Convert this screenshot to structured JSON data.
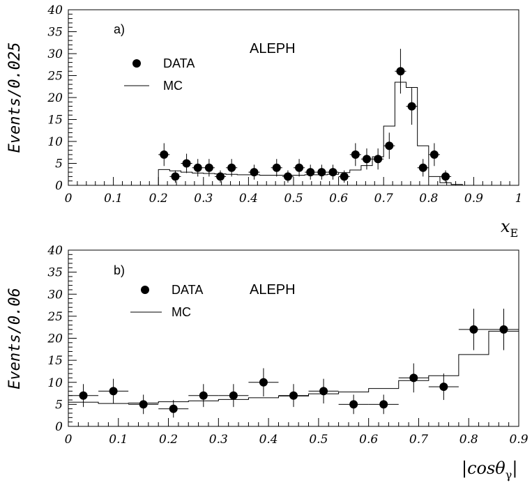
{
  "chart_data": [
    {
      "type": "scatter",
      "panel_label": "a)",
      "experiment_label": "ALEPH",
      "ylabel": "Events/0.025",
      "xlabel": "x",
      "xlabel_sub": "E",
      "xlim": [
        0,
        1
      ],
      "ylim": [
        0,
        40
      ],
      "x_ticks": [
        0,
        0.1,
        0.2,
        0.3,
        0.4,
        0.5,
        0.6,
        0.7,
        0.8,
        0.9,
        1
      ],
      "x_tick_labels": [
        "0",
        "0.1",
        "0.2",
        "0.3",
        "0.4",
        "0.5",
        "0.6",
        "0.7",
        "0.8",
        "0.9",
        "1"
      ],
      "y_ticks": [
        0,
        5,
        10,
        15,
        20,
        25,
        30,
        35,
        40
      ],
      "y_tick_labels": [
        "0",
        "5",
        "10",
        "15",
        "20",
        "25",
        "30",
        "35",
        "40"
      ],
      "legend": [
        "DATA",
        "MC"
      ],
      "series": [
        {
          "name": "DATA",
          "kind": "points",
          "x": [
            0.2125,
            0.2375,
            0.2625,
            0.2875,
            0.3125,
            0.3375,
            0.3625,
            0.4125,
            0.4625,
            0.4875,
            0.5125,
            0.5375,
            0.5625,
            0.5875,
            0.6125,
            0.6375,
            0.6625,
            0.6875,
            0.7125,
            0.7375,
            0.7625,
            0.7875,
            0.8125,
            0.8375
          ],
          "y": [
            7,
            2,
            5,
            4,
            4,
            2,
            4,
            3,
            4,
            2,
            4,
            3,
            3,
            3,
            2,
            7,
            6,
            6,
            9,
            26,
            18,
            4,
            7,
            2
          ],
          "yerr": [
            2.6,
            1.4,
            2.2,
            2.0,
            2.0,
            1.4,
            2.0,
            1.7,
            2.0,
            1.4,
            2.0,
            1.7,
            1.7,
            1.7,
            1.4,
            2.6,
            2.4,
            2.4,
            3.0,
            5.1,
            4.2,
            2.0,
            2.6,
            1.4
          ],
          "xerr": 0.0125
        },
        {
          "name": "MC",
          "kind": "histogram",
          "bin_edges": [
            0.2,
            0.225,
            0.25,
            0.275,
            0.3,
            0.325,
            0.35,
            0.375,
            0.4,
            0.425,
            0.45,
            0.475,
            0.5,
            0.525,
            0.55,
            0.575,
            0.6,
            0.625,
            0.65,
            0.675,
            0.7,
            0.725,
            0.75,
            0.775,
            0.8,
            0.825,
            0.85,
            0.875
          ],
          "values": [
            3.6,
            3.3,
            3.0,
            2.8,
            2.7,
            2.6,
            2.5,
            2.4,
            2.4,
            2.3,
            2.3,
            2.3,
            2.3,
            2.4,
            2.4,
            2.5,
            2.9,
            3.5,
            4.5,
            6.5,
            13.5,
            23.5,
            22.3,
            9.0,
            2.0,
            0.6,
            0.2
          ]
        }
      ]
    },
    {
      "type": "scatter",
      "panel_label": "b)",
      "experiment_label": "ALEPH",
      "ylabel": "Events/0.06",
      "xlabel": "|cosθ",
      "xlabel_sub": "γ",
      "xlabel_suffix": "|",
      "xlim": [
        0,
        0.9
      ],
      "ylim": [
        0,
        40
      ],
      "x_ticks": [
        0,
        0.1,
        0.2,
        0.3,
        0.4,
        0.5,
        0.6,
        0.7,
        0.8,
        0.9
      ],
      "x_tick_labels": [
        "0",
        "0.1",
        "0.2",
        "0.3",
        "0.4",
        "0.5",
        "0.6",
        "0.7",
        "0.8",
        "0.9"
      ],
      "y_ticks": [
        0,
        5,
        10,
        15,
        20,
        25,
        30,
        35,
        40
      ],
      "y_tick_labels": [
        "0",
        "5",
        "10",
        "15",
        "20",
        "25",
        "30",
        "35",
        "40"
      ],
      "legend": [
        "DATA",
        "MC"
      ],
      "series": [
        {
          "name": "DATA",
          "kind": "points",
          "x": [
            0.03,
            0.09,
            0.15,
            0.21,
            0.27,
            0.33,
            0.39,
            0.45,
            0.51,
            0.57,
            0.63,
            0.69,
            0.75,
            0.81,
            0.87
          ],
          "y": [
            7,
            8,
            5,
            4,
            7,
            7,
            10,
            7,
            8,
            5,
            5,
            11,
            9,
            22,
            22
          ],
          "yerr": [
            2.6,
            2.8,
            2.2,
            2.0,
            2.6,
            2.6,
            3.2,
            2.6,
            2.8,
            2.2,
            2.2,
            3.3,
            3.0,
            4.7,
            4.7
          ],
          "xerr": 0.03
        },
        {
          "name": "MC",
          "kind": "histogram",
          "bin_edges": [
            0,
            0.06,
            0.12,
            0.18,
            0.24,
            0.3,
            0.36,
            0.42,
            0.48,
            0.54,
            0.6,
            0.66,
            0.72,
            0.78,
            0.84,
            0.9
          ],
          "values": [
            5.5,
            5.2,
            5.3,
            5.6,
            5.8,
            6.1,
            6.5,
            6.9,
            7.4,
            7.8,
            8.6,
            10.4,
            11.5,
            16.3,
            21.6
          ]
        }
      ]
    }
  ]
}
